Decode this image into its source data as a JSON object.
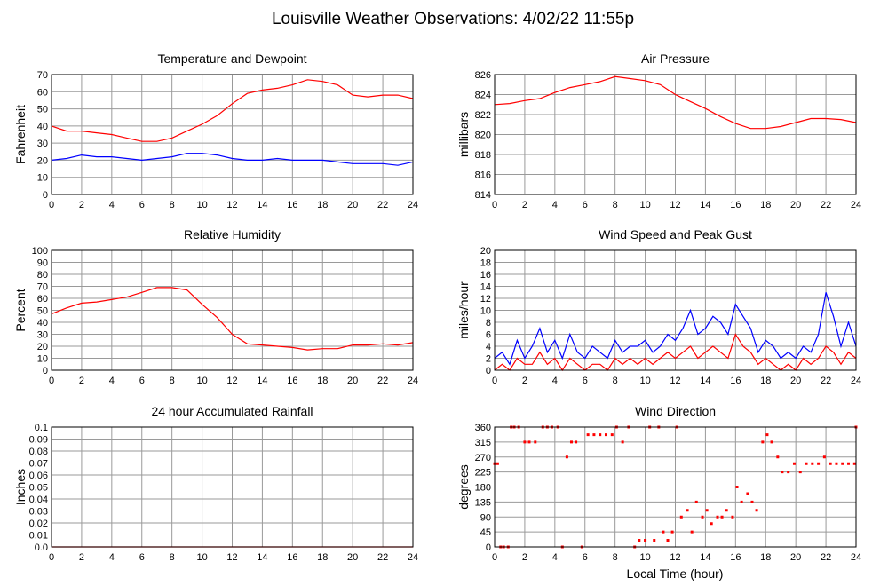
{
  "title": "Louisville Weather Observations: 4/02/22 11:55p",
  "xlabel": "Local Time (hour)",
  "colors": {
    "primary": "#ff0000",
    "secondary": "#0000ff",
    "grid": "#9a9a9a",
    "frame": "#000000"
  },
  "chart_data": [
    {
      "type": "line",
      "title": "Temperature and Dewpoint",
      "ylabel": "Fahrenheit",
      "xlim": [
        0,
        24
      ],
      "ylim": [
        0,
        70
      ],
      "x_ticks": [
        "0",
        "2",
        "4",
        "6",
        "8",
        "10",
        "12",
        "14",
        "16",
        "18",
        "20",
        "22",
        "24"
      ],
      "y_ticks": [
        "0",
        "10",
        "20",
        "30",
        "40",
        "50",
        "60",
        "70"
      ],
      "grid": true,
      "series": [
        {
          "color": "#ff0000",
          "x": [
            0,
            1,
            2,
            3,
            4,
            5,
            6,
            7,
            8,
            9,
            10,
            11,
            12,
            13,
            14,
            15,
            16,
            17,
            18,
            19,
            20,
            21,
            22,
            23,
            24
          ],
          "values": [
            40,
            37,
            37,
            36,
            35,
            33,
            31,
            31,
            33,
            37,
            41,
            46,
            53,
            59,
            61,
            62,
            64,
            67,
            66,
            64,
            58,
            57,
            58,
            58,
            56
          ]
        },
        {
          "color": "#0000ff",
          "x": [
            0,
            1,
            2,
            3,
            4,
            5,
            6,
            7,
            8,
            9,
            10,
            11,
            12,
            13,
            14,
            15,
            16,
            17,
            18,
            19,
            20,
            21,
            22,
            23,
            24
          ],
          "values": [
            20,
            21,
            23,
            22,
            22,
            21,
            20,
            21,
            22,
            24,
            24,
            23,
            21,
            20,
            20,
            21,
            20,
            20,
            20,
            19,
            18,
            18,
            18,
            17,
            19
          ]
        }
      ]
    },
    {
      "type": "line",
      "title": "Air Pressure",
      "ylabel": "millibars",
      "xlim": [
        0,
        24
      ],
      "ylim": [
        814,
        826
      ],
      "x_ticks": [
        "0",
        "2",
        "4",
        "6",
        "8",
        "10",
        "12",
        "14",
        "16",
        "18",
        "20",
        "22",
        "24"
      ],
      "y_ticks": [
        "814",
        "816",
        "818",
        "820",
        "822",
        "824",
        "826"
      ],
      "grid": true,
      "series": [
        {
          "color": "#ff0000",
          "x": [
            0,
            1,
            2,
            3,
            4,
            5,
            6,
            7,
            8,
            9,
            10,
            11,
            12,
            13,
            14,
            15,
            16,
            17,
            18,
            19,
            20,
            21,
            22,
            23,
            24
          ],
          "values": [
            823.0,
            823.1,
            823.4,
            823.6,
            824.2,
            824.7,
            825.0,
            825.3,
            825.8,
            825.6,
            825.4,
            825.0,
            824.0,
            823.3,
            822.6,
            821.8,
            821.1,
            820.6,
            820.6,
            820.8,
            821.2,
            821.6,
            821.6,
            821.5,
            821.2
          ]
        }
      ]
    },
    {
      "type": "line",
      "title": "Relative Humidity",
      "ylabel": "Percent",
      "xlim": [
        0,
        24
      ],
      "ylim": [
        0,
        100
      ],
      "x_ticks": [
        "0",
        "2",
        "4",
        "6",
        "8",
        "10",
        "12",
        "14",
        "16",
        "18",
        "20",
        "22",
        "24"
      ],
      "y_ticks": [
        "0",
        "10",
        "20",
        "30",
        "40",
        "50",
        "60",
        "70",
        "80",
        "90",
        "100"
      ],
      "grid": true,
      "series": [
        {
          "color": "#ff0000",
          "x": [
            0,
            1,
            2,
            3,
            4,
            5,
            6,
            7,
            8,
            9,
            10,
            11,
            12,
            13,
            14,
            15,
            16,
            17,
            18,
            19,
            20,
            21,
            22,
            23,
            24
          ],
          "values": [
            47,
            52,
            56,
            57,
            59,
            61,
            65,
            69,
            69,
            67,
            55,
            44,
            30,
            22,
            21,
            20,
            19,
            17,
            18,
            18,
            21,
            21,
            22,
            21,
            23
          ]
        }
      ]
    },
    {
      "type": "line",
      "title": "Wind Speed and Peak Gust",
      "ylabel": "miles/hour",
      "xlim": [
        0,
        24
      ],
      "ylim": [
        0,
        20
      ],
      "x_ticks": [
        "0",
        "2",
        "4",
        "6",
        "8",
        "10",
        "12",
        "14",
        "16",
        "18",
        "20",
        "22",
        "24"
      ],
      "y_ticks": [
        "0",
        "2",
        "4",
        "6",
        "8",
        "10",
        "12",
        "14",
        "16",
        "18",
        "20"
      ],
      "grid": true,
      "series": [
        {
          "color": "#0000ff",
          "x": [
            0,
            0.5,
            1,
            1.5,
            2,
            2.5,
            3,
            3.5,
            4,
            4.5,
            5,
            5.5,
            6,
            6.5,
            7,
            7.5,
            8,
            8.5,
            9,
            9.5,
            10,
            10.5,
            11,
            11.5,
            12,
            12.5,
            13,
            13.5,
            14,
            14.5,
            15,
            15.5,
            16,
            16.5,
            17,
            17.5,
            18,
            18.5,
            19,
            19.5,
            20,
            20.5,
            21,
            21.5,
            22,
            22.5,
            23,
            23.5,
            24
          ],
          "values": [
            2,
            3,
            1,
            5,
            2,
            4,
            7,
            3,
            5,
            2,
            6,
            3,
            2,
            4,
            3,
            2,
            5,
            3,
            4,
            4,
            5,
            3,
            4,
            6,
            5,
            7,
            10,
            6,
            7,
            9,
            8,
            6,
            11,
            9,
            7,
            3,
            5,
            4,
            2,
            3,
            2,
            4,
            3,
            6,
            13,
            9,
            4,
            8,
            4
          ]
        },
        {
          "color": "#ff0000",
          "x": [
            0,
            0.5,
            1,
            1.5,
            2,
            2.5,
            3,
            3.5,
            4,
            4.5,
            5,
            5.5,
            6,
            6.5,
            7,
            7.5,
            8,
            8.5,
            9,
            9.5,
            10,
            10.5,
            11,
            11.5,
            12,
            12.5,
            13,
            13.5,
            14,
            14.5,
            15,
            15.5,
            16,
            16.5,
            17,
            17.5,
            18,
            18.5,
            19,
            19.5,
            20,
            20.5,
            21,
            21.5,
            22,
            22.5,
            23,
            23.5,
            24
          ],
          "values": [
            0,
            1,
            0,
            2,
            1,
            1,
            3,
            1,
            2,
            0,
            2,
            1,
            0,
            1,
            1,
            0,
            2,
            1,
            2,
            1,
            2,
            1,
            2,
            3,
            2,
            3,
            4,
            2,
            3,
            4,
            3,
            2,
            6,
            4,
            3,
            1,
            2,
            1,
            0,
            1,
            0,
            2,
            1,
            2,
            4,
            3,
            1,
            3,
            2
          ]
        }
      ]
    },
    {
      "type": "line",
      "title": "24 hour Accumulated Rainfall",
      "ylabel": "Inches",
      "xlim": [
        0,
        24
      ],
      "ylim": [
        0,
        0.1
      ],
      "x_ticks": [
        "0",
        "2",
        "4",
        "6",
        "8",
        "10",
        "12",
        "14",
        "16",
        "18",
        "20",
        "22",
        "24"
      ],
      "y_ticks": [
        "0.0",
        "0.01",
        "0.02",
        "0.03",
        "0.04",
        "0.05",
        "0.06",
        "0.07",
        "0.08",
        "0.09",
        "0.1"
      ],
      "grid": true,
      "series": [
        {
          "color": "#ff0000",
          "x": [
            0,
            24
          ],
          "values": [
            0,
            0
          ]
        }
      ]
    },
    {
      "type": "scatter",
      "title": "Wind Direction",
      "ylabel": "degrees",
      "xlim": [
        0,
        24
      ],
      "ylim": [
        0,
        360
      ],
      "x_ticks": [
        "0",
        "2",
        "4",
        "6",
        "8",
        "10",
        "12",
        "14",
        "16",
        "18",
        "20",
        "22",
        "24"
      ],
      "y_ticks": [
        "0",
        "45",
        "90",
        "135",
        "180",
        "225",
        "270",
        "315",
        "360"
      ],
      "grid": true,
      "series": [
        {
          "color": "#ff0000",
          "x": [
            0,
            0.2,
            0.4,
            0.6,
            0.9,
            1.1,
            1.3,
            1.6,
            2,
            2.3,
            2.7,
            3.2,
            3.5,
            3.8,
            4.2,
            4.5,
            4.8,
            5.1,
            5.4,
            5.8,
            6.2,
            6.6,
            7,
            7.4,
            7.8,
            8.1,
            8.5,
            8.9,
            9.3,
            9.6,
            10,
            10.3,
            10.6,
            10.9,
            11.2,
            11.5,
            11.8,
            12.1,
            12.4,
            12.8,
            13.1,
            13.4,
            13.8,
            14.1,
            14.4,
            14.8,
            15.1,
            15.4,
            15.8,
            16.1,
            16.4,
            16.8,
            17.1,
            17.4,
            17.8,
            18.1,
            18.4,
            18.8,
            19.1,
            19.5,
            19.9,
            20.3,
            20.7,
            21.1,
            21.5,
            21.9,
            22.3,
            22.7,
            23.1,
            23.5,
            23.9,
            24
          ],
          "values": [
            250,
            250,
            0,
            0,
            0,
            360,
            360,
            360,
            315,
            315,
            315,
            360,
            360,
            360,
            360,
            0,
            270,
            315,
            315,
            0,
            337,
            337,
            337,
            337,
            337,
            360,
            315,
            360,
            0,
            20,
            20,
            360,
            20,
            360,
            45,
            20,
            45,
            360,
            90,
            110,
            45,
            135,
            90,
            110,
            70,
            90,
            90,
            110,
            90,
            180,
            135,
            160,
            135,
            110,
            315,
            337,
            315,
            270,
            225,
            225,
            250,
            225,
            250,
            250,
            250,
            270,
            250,
            250,
            250,
            250,
            250,
            360
          ]
        }
      ]
    }
  ]
}
